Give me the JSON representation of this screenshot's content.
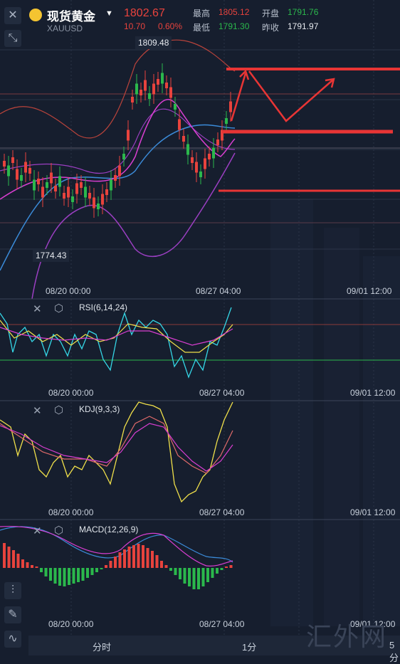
{
  "header": {
    "symbol_name": "现货黄金",
    "symbol_code": "XAUUSD",
    "price": "1802.67",
    "change": "10.70",
    "change_pct": "0.60%",
    "high_label": "最高",
    "high_value": "1805.12",
    "open_label": "开盘",
    "open_value": "1791.76",
    "low_label": "最低",
    "low_value": "1791.30",
    "prev_close_label": "昨收",
    "prev_close_value": "1791.97"
  },
  "main_chart": {
    "high_tag": "1809.48",
    "low_tag": "1774.43",
    "time_labels": [
      "08/20 00:00",
      "08/27 04:00",
      "09/01 12:00"
    ]
  },
  "rsi": {
    "label": "RSI(6,14,24)",
    "time_labels": [
      "08/20 00:00",
      "08/27 04:00",
      "09/01 12:00"
    ]
  },
  "kdj": {
    "label": "KDJ(9,3,3)",
    "time_labels": [
      "08/20 00:00",
      "08/27 04:00",
      "09/01 12:00"
    ]
  },
  "macd": {
    "label": "MACD(12,26,9)",
    "time_labels": [
      "08/20 00:00",
      "08/27 04:00",
      "09/01 12:00"
    ]
  },
  "bottom_bar": {
    "tab_timeshare": "分时",
    "tab_1min": "1分",
    "tab_5min": "5分"
  },
  "watermark": "汇外网",
  "colors": {
    "up": "#e8433d",
    "down": "#2bb84c",
    "bg": "#161e2e",
    "accent": "#f4c431"
  }
}
